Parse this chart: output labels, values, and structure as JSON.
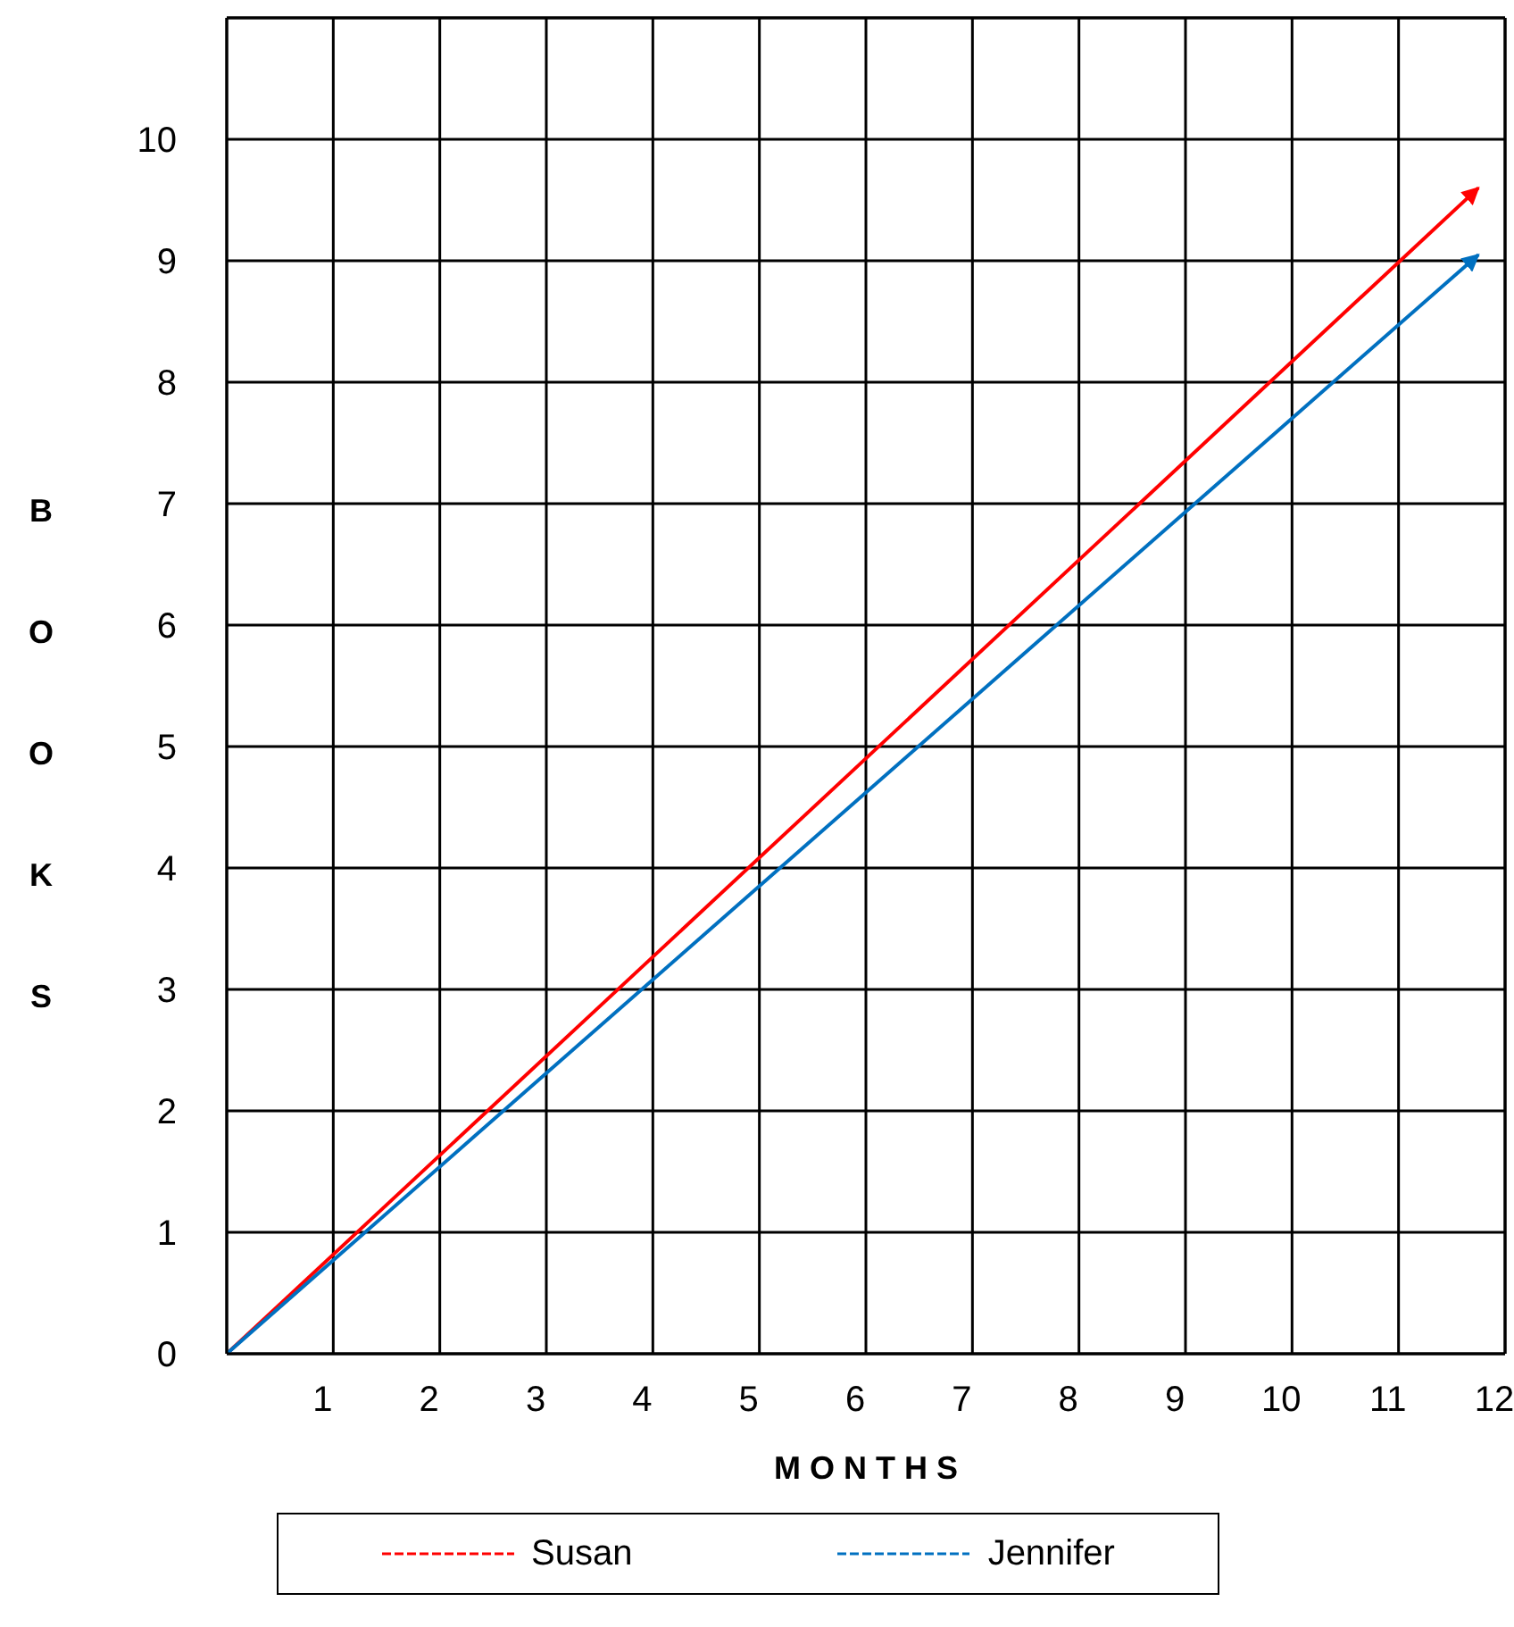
{
  "chart_data": {
    "type": "line",
    "xlabel": "MONTHS",
    "ylabel": "BOOKS",
    "x": [
      0,
      11.75
    ],
    "series": [
      {
        "name": "Susan",
        "color": "#ff0000",
        "values": [
          0,
          9.6
        ]
      },
      {
        "name": "Jennifer",
        "color": "#0070c0",
        "values": [
          0,
          9.05
        ]
      }
    ],
    "xlim": [
      0,
      12
    ],
    "xticks": [
      1,
      2,
      3,
      4,
      5,
      6,
      7,
      8,
      9,
      10,
      11,
      12
    ],
    "ylim": [
      0,
      11
    ],
    "yticks": [
      0,
      1,
      2,
      3,
      4,
      5,
      6,
      7,
      8,
      9,
      10
    ],
    "grid": true,
    "legend": "bottom",
    "marker": "none",
    "line_style": "solid"
  }
}
